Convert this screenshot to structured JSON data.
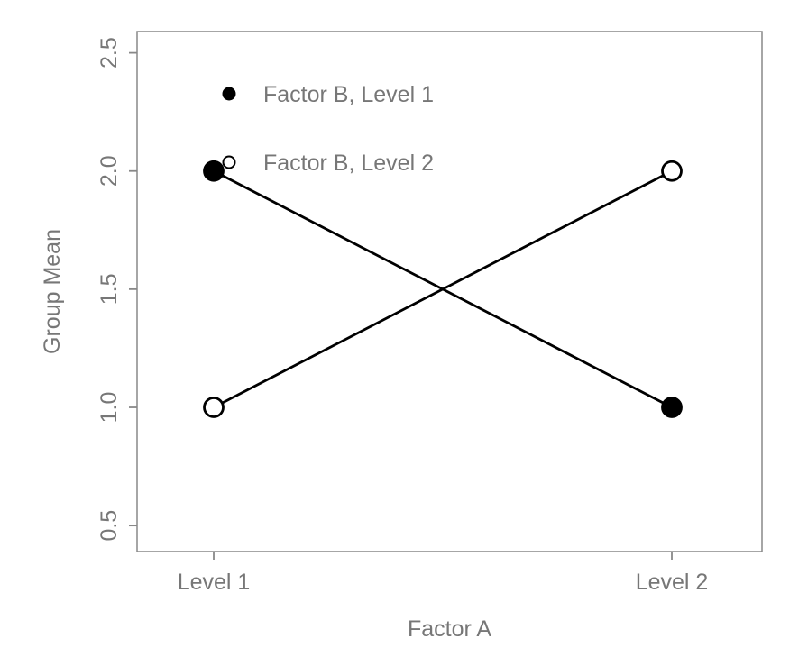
{
  "figure": {
    "kind": "interaction-plot"
  },
  "chart_data": {
    "type": "line",
    "title": "",
    "xlabel": "Factor A",
    "ylabel": "Group Mean",
    "categories": [
      "Level 1",
      "Level 2"
    ],
    "series": [
      {
        "name": "Factor B, Level 1",
        "marker": "filled-circle",
        "values": [
          2.0,
          1.0
        ]
      },
      {
        "name": "Factor B, Level 2",
        "marker": "open-circle",
        "values": [
          1.0,
          2.0
        ]
      }
    ],
    "yticks": [
      {
        "value": 0.5,
        "label": "0.5"
      },
      {
        "value": 1.0,
        "label": "1.0"
      },
      {
        "value": 1.5,
        "label": "1.5"
      },
      {
        "value": 2.0,
        "label": "2.0"
      },
      {
        "value": 2.5,
        "label": "2.5"
      }
    ],
    "ylim": [
      0.39,
      2.59
    ],
    "grid": false,
    "legend_position": "top-left-inside",
    "colors": {
      "data": "#000000",
      "text": "#777777",
      "frame": "#888888",
      "background": "#ffffff"
    }
  }
}
